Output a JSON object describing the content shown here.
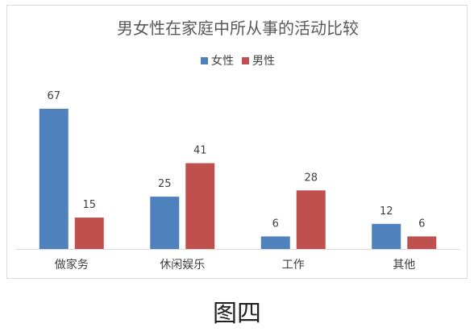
{
  "figure_caption": "图四",
  "colors": {
    "female": "#4f81bd",
    "male": "#c0504d",
    "axis": "#d9d9d9",
    "label": "#404040"
  },
  "chart_data": {
    "type": "bar",
    "title": "男女性在家庭中所从事的活动比较",
    "categories": [
      "做家务",
      "休闲娱乐",
      "工作",
      "其他"
    ],
    "series": [
      {
        "name": "女性",
        "values": [
          67,
          25,
          6,
          12
        ]
      },
      {
        "name": "男性",
        "values": [
          15,
          41,
          28,
          6
        ]
      }
    ],
    "ylim": [
      0,
      70
    ],
    "grid": false,
    "legend_position": "top",
    "data_labels": true
  }
}
